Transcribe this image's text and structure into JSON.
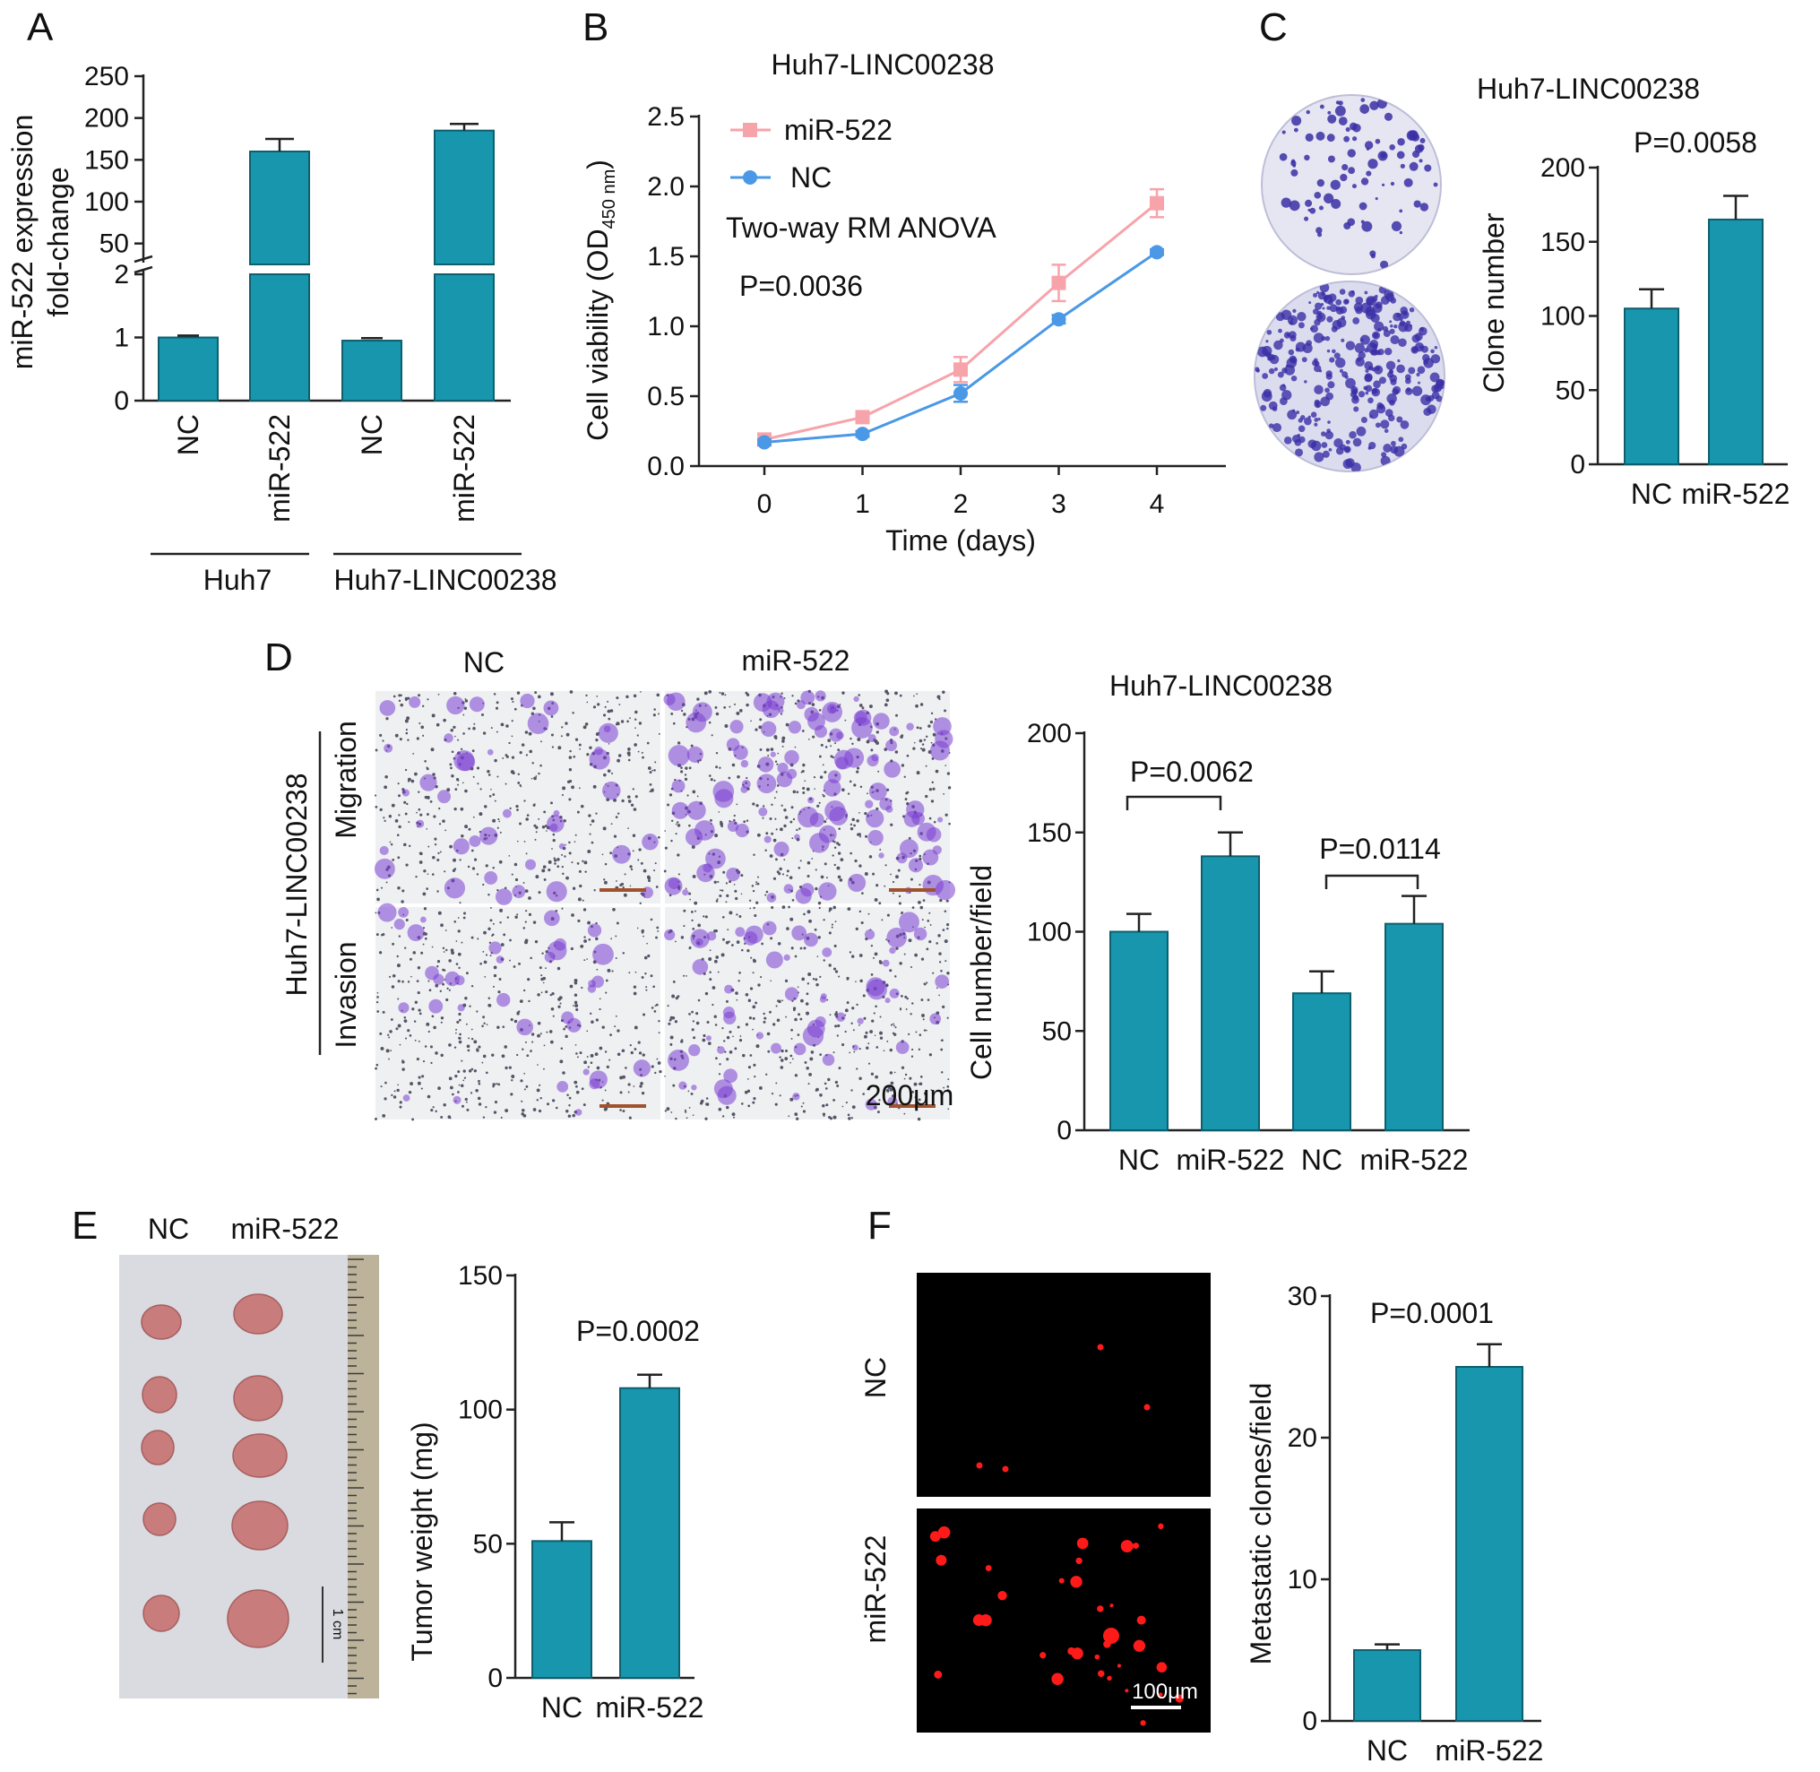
{
  "panels": {
    "A": {
      "letter": "A"
    },
    "B": {
      "letter": "B"
    },
    "C": {
      "letter": "C",
      "title": "Huh7-LINC00238",
      "pvalue": "P=0.0058"
    },
    "D": {
      "letter": "D",
      "title": "Huh7-LINC00238",
      "image_col_labels": [
        "NC",
        "miR-522"
      ],
      "image_row_labels": [
        "Migration",
        "Invasion"
      ],
      "image_group_label": "Huh7-LINC00238",
      "scale_bar": "200μm",
      "pvalues": [
        "P=0.0062",
        "P=0.0114"
      ]
    },
    "E": {
      "letter": "E",
      "image_col_labels": [
        "NC",
        "miR-522"
      ],
      "ruler_label": "1 cm",
      "pvalue": "P=0.0002"
    },
    "F": {
      "letter": "F",
      "image_row_labels": [
        "NC",
        "miR-522"
      ],
      "scale_bar": "100μm",
      "pvalue": "P=0.0001"
    }
  },
  "colors": {
    "bar": "#1796ad",
    "bar_edge": "#0e5f6e",
    "line_mir522": "#f7a3aa",
    "line_nc": "#4a98e6",
    "plate_bg": "#e6e6f2",
    "colony": "#3a2fa6",
    "transwell_bg": "#eef0f2",
    "stain": "#7a3ed1",
    "fluor_bg": "#000000",
    "fluor_dot": "#ff1a1a",
    "tissue_bg": "#d9dbe0",
    "tumor": "#c97c7c"
  },
  "chart_data": [
    {
      "panel": "A",
      "type": "bar",
      "ylabel_lines": [
        "miR-522 expression",
        "fold-change"
      ],
      "y_ticks_lower": [
        "0",
        "1",
        "2"
      ],
      "y_ticks_upper": [
        "50",
        "100",
        "150",
        "200",
        "250"
      ],
      "categories": [
        "NC",
        "miR-522",
        "NC",
        "miR-522"
      ],
      "groups": [
        "Huh7",
        "Huh7-LINC00238"
      ],
      "values": [
        1.0,
        160,
        0.95,
        185
      ],
      "errors": [
        0.03,
        15,
        0.04,
        8
      ],
      "axis_break": true,
      "ylim_lower": [
        0,
        2.1
      ],
      "ylim_upper": [
        0,
        250
      ]
    },
    {
      "panel": "B",
      "type": "line",
      "title": "Huh7-LINC00238",
      "xlabel": "Time (days)",
      "ylabel_main": "Cell viability (OD",
      "ylabel_sub": "450 nm",
      "ylabel_end": ")",
      "x": [
        0,
        1,
        2,
        3,
        4
      ],
      "x_ticks": [
        "0",
        "1",
        "2",
        "3",
        "4"
      ],
      "y_ticks": [
        "0.0",
        "0.5",
        "1.0",
        "1.5",
        "2.0",
        "2.5"
      ],
      "ylim": [
        0,
        2.5
      ],
      "series": [
        {
          "name": "miR-522",
          "values": [
            0.19,
            0.35,
            0.69,
            1.31,
            1.88
          ],
          "errors": [
            0.02,
            0.03,
            0.09,
            0.13,
            0.1
          ]
        },
        {
          "name": "NC",
          "values": [
            0.17,
            0.23,
            0.52,
            1.05,
            1.53
          ],
          "errors": [
            0.02,
            0.02,
            0.06,
            0.03,
            0.02
          ]
        }
      ],
      "annotations": [
        "Two-way RM ANOVA",
        "P=0.0036"
      ]
    },
    {
      "panel": "C",
      "type": "bar",
      "ylabel": "Clone number",
      "categories": [
        "NC",
        "miR-522"
      ],
      "values": [
        105,
        165
      ],
      "errors": [
        13,
        16
      ],
      "ylim": [
        0,
        200
      ],
      "y_ticks": [
        "0",
        "50",
        "100",
        "150",
        "200"
      ]
    },
    {
      "panel": "D",
      "type": "bar",
      "ylabel": "Cell number/field",
      "categories": [
        "NC",
        "miR-522",
        "NC",
        "miR-522"
      ],
      "values": [
        100,
        138,
        69,
        104
      ],
      "errors": [
        9,
        12,
        11,
        14
      ],
      "ylim": [
        0,
        200
      ],
      "y_ticks": [
        "0",
        "50",
        "100",
        "150",
        "200"
      ]
    },
    {
      "panel": "E",
      "type": "bar",
      "ylabel": "Tumor weight (mg)",
      "categories": [
        "NC",
        "miR-522"
      ],
      "values": [
        51,
        108
      ],
      "errors": [
        7,
        5
      ],
      "ylim": [
        0,
        150
      ],
      "y_ticks": [
        "0",
        "50",
        "100",
        "150"
      ]
    },
    {
      "panel": "F",
      "type": "bar",
      "ylabel": "Metastatic clones/field",
      "categories": [
        "NC",
        "miR-522"
      ],
      "values": [
        5,
        25
      ],
      "errors": [
        0.4,
        1.6
      ],
      "ylim": [
        0,
        30
      ],
      "y_ticks": [
        "0",
        "10",
        "20",
        "30"
      ]
    }
  ]
}
